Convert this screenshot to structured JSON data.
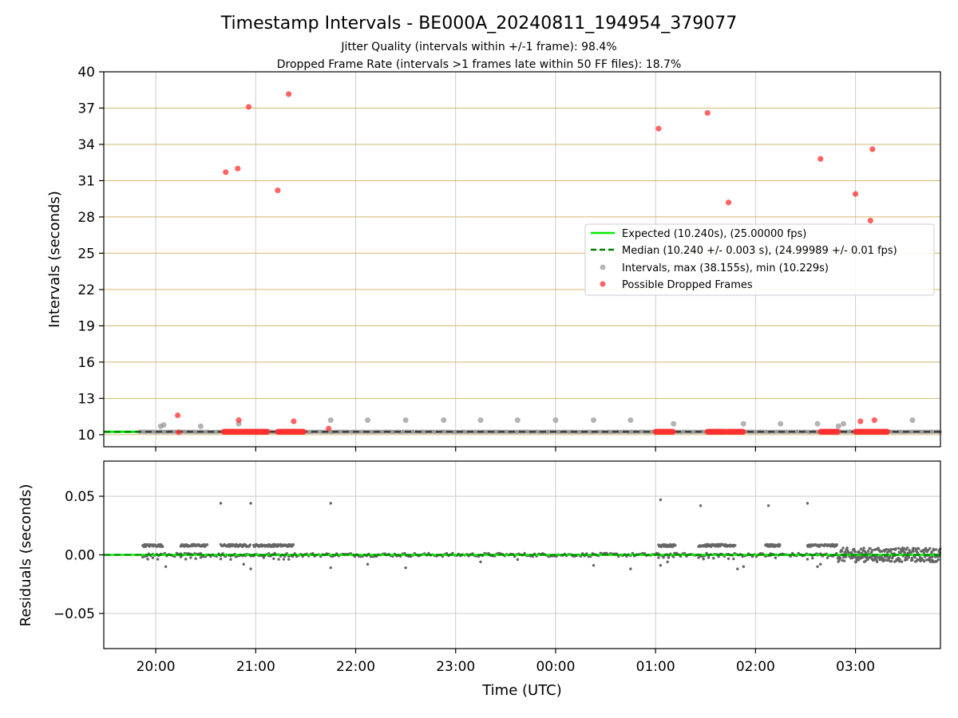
{
  "title": "Timestamp Intervals - BE000A_20240811_194954_379077",
  "subtitle_line1": "Jitter Quality (intervals within +/-1 frame): 98.4%",
  "subtitle_line2": "Dropped Frame Rate (intervals >1 frames late within 50 FF files): 18.7%",
  "colors": {
    "expected": "#00ee00",
    "median": "#008000",
    "intervals": "#999999",
    "dropped": "#ff3030",
    "hgrid": "#d2b872",
    "vgrid": "#cccccc",
    "residual": "#666666"
  },
  "legend": {
    "expected": "Expected (10.240s), (25.00000 fps)",
    "median": "Median (10.240 +/- 0.003 s), (24.99989 +/- 0.01 fps)",
    "intervals": "Intervals, max (38.155s), min (10.229s)",
    "dropped": "Possible Dropped Frames",
    "placement": "center-right"
  },
  "chart_data": [
    {
      "type": "scatter",
      "panel": "intervals",
      "ylabel": "Intervals (seconds)",
      "ylim": [
        9,
        40
      ],
      "xlim_hours": [
        19.48,
        27.85
      ],
      "yticks": [
        "10",
        "13",
        "16",
        "19",
        "22",
        "25",
        "28",
        "31",
        "34",
        "37",
        "40"
      ],
      "ytick_values": [
        10,
        13,
        16,
        19,
        22,
        25,
        28,
        31,
        34,
        37,
        40
      ],
      "expected": 10.24,
      "median": 10.24,
      "grid": true,
      "series": [
        {
          "name": "Intervals, max (38.155s), min (10.229s)",
          "x": [
            20.05,
            20.08,
            20.45,
            20.83,
            21.75,
            22.12,
            22.5,
            22.88,
            23.25,
            23.62,
            24.0,
            24.38,
            24.75,
            25.18,
            25.88,
            26.25,
            26.62,
            26.83,
            26.88,
            27.57
          ],
          "y": [
            10.7,
            10.8,
            10.7,
            10.9,
            11.2,
            11.2,
            11.2,
            11.2,
            11.2,
            11.2,
            11.2,
            11.2,
            11.2,
            10.9,
            10.9,
            10.9,
            10.9,
            10.7,
            10.9,
            11.2
          ]
        },
        {
          "name": "Possible Dropped Frames",
          "x": [
            20.22,
            20.23,
            20.7,
            20.82,
            20.83,
            20.93,
            21.22,
            21.33,
            21.38,
            21.73,
            25.03,
            25.52,
            25.73,
            26.65,
            27.0,
            27.05,
            27.15,
            27.17,
            27.19
          ],
          "y": [
            11.6,
            10.2,
            31.7,
            32.0,
            11.2,
            37.1,
            30.2,
            38.155,
            11.1,
            10.5,
            35.3,
            36.6,
            29.2,
            32.8,
            29.9,
            11.1,
            27.7,
            33.6,
            11.2
          ],
          "clusters_y": 10.24,
          "clusters_x_ranges": [
            [
              20.68,
              21.12
            ],
            [
              21.22,
              21.48
            ],
            [
              25.0,
              25.18
            ],
            [
              25.52,
              25.7
            ],
            [
              25.72,
              25.88
            ],
            [
              26.65,
              26.83
            ],
            [
              27.0,
              27.32
            ]
          ]
        }
      ]
    },
    {
      "type": "scatter",
      "panel": "residuals",
      "xlabel": "Time (UTC)",
      "ylabel": "Residuals (seconds)",
      "ylim": [
        -0.08,
        0.08
      ],
      "yticks": [
        "0.05",
        "0.00",
        "−0.05"
      ],
      "ytick_values": [
        0.05,
        0.0,
        -0.05
      ],
      "xticks": [
        "20:00",
        "21:00",
        "22:00",
        "23:00",
        "00:00",
        "01:00",
        "02:00",
        "03:00"
      ],
      "xtick_hours": [
        20,
        21,
        22,
        23,
        24,
        25,
        26,
        27
      ],
      "zero_line": 0.0,
      "grid": true,
      "outliers": {
        "x": [
          20.65,
          20.95,
          21.75,
          25.05,
          25.45,
          26.13,
          26.52,
          20.1,
          20.88,
          20.95,
          21.75,
          22.12,
          22.5,
          23.25,
          23.62,
          24.38,
          24.75,
          25.05,
          25.12,
          25.82,
          25.88,
          26.62,
          26.65,
          27.0
        ],
        "y": [
          0.044,
          0.044,
          0.044,
          0.047,
          0.042,
          0.042,
          0.044,
          -0.01,
          -0.008,
          -0.012,
          -0.011,
          -0.008,
          -0.011,
          -0.006,
          -0.004,
          -0.009,
          -0.012,
          -0.009,
          -0.006,
          -0.012,
          -0.01,
          -0.01,
          -0.008,
          -0.006
        ]
      },
      "band_ranges_hours": [
        [
          19.87,
          20.07
        ],
        [
          20.25,
          20.52
        ],
        [
          20.65,
          20.95
        ],
        [
          20.98,
          21.38
        ],
        [
          25.03,
          25.2
        ],
        [
          25.43,
          25.8
        ],
        [
          26.1,
          26.25
        ],
        [
          26.52,
          26.82
        ]
      ],
      "band_value": 0.008,
      "noisy_range_hours": [
        26.82,
        27.85
      ]
    }
  ]
}
